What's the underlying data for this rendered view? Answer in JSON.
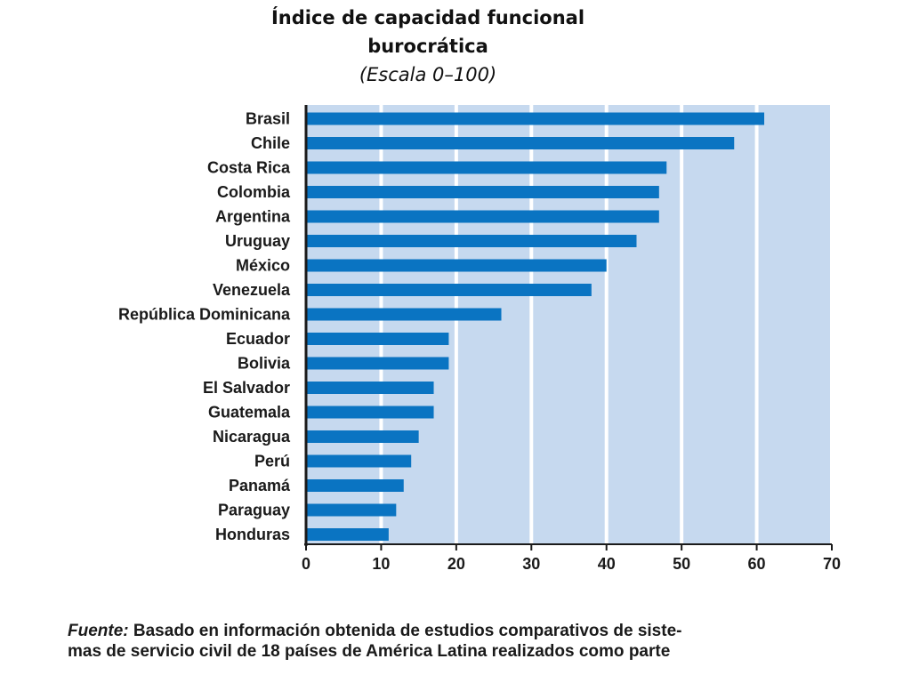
{
  "chart_data": {
    "type": "bar",
    "orientation": "horizontal",
    "title_line1": "Índice de capacidad funcional",
    "title_line2": "burocrática",
    "subtitle": "(Escala 0–100)",
    "xlabel": "",
    "ylabel": "",
    "xlim": [
      0,
      70
    ],
    "xticks": [
      0,
      10,
      20,
      30,
      40,
      50,
      60,
      70
    ],
    "grid": true,
    "colors": {
      "bar": "#0a74c2",
      "plot_background": "#c6d9ef",
      "gridline": "#ffffff",
      "axis": "#1a1a1a"
    },
    "categories": [
      "Brasil",
      "Chile",
      "Costa Rica",
      "Colombia",
      "Argentina",
      "Uruguay",
      "México",
      "Venezuela",
      "República Dominicana",
      "Ecuador",
      "Bolivia",
      "El Salvador",
      "Guatemala",
      "Nicaragua",
      "Perú",
      "Panamá",
      "Paraguay",
      "Honduras"
    ],
    "values": [
      61,
      57,
      48,
      47,
      47,
      44,
      40,
      38,
      26,
      19,
      19,
      17,
      17,
      15,
      14,
      13,
      12,
      11
    ]
  },
  "source": {
    "label": "Fuente:",
    "line1": "Basado en información obtenida de estudios comparativos de siste-",
    "line2": "mas de servicio civil de 18 países de América Latina realizados como parte"
  }
}
